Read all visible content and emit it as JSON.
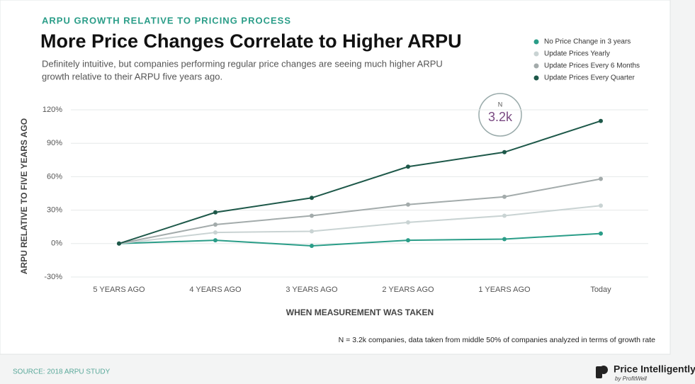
{
  "chart_data": {
    "type": "line",
    "kicker": "ARPU GROWTH RELATIVE TO PRICING PROCESS",
    "title": "More Price Changes Correlate to Higher ARPU",
    "subtitle": [
      "Definitely intuitive, but companies performing regular price changes are seeing much higher ARPU",
      "growth relative to their ARPU five years ago."
    ],
    "y_label": "ARPU RELATIVE TO FIVE YEARS AGO",
    "x_label": "WHEN MEASUREMENT WAS TAKEN",
    "categories": [
      "5 YEARS AGO",
      "4 YEARS AGO",
      "3 YEARS AGO",
      "2 YEARS AGO",
      "1 YEARS AGO",
      "Today"
    ],
    "series": [
      {
        "name": "No Price Change in 3 years",
        "color": "#2a9d88",
        "values": [
          0,
          3,
          -2,
          3,
          4,
          9
        ]
      },
      {
        "name": "Update Prices Yearly",
        "color": "#c9d3d3",
        "values": [
          0,
          10,
          11,
          19,
          25,
          34
        ]
      },
      {
        "name": "Update Prices Every 6 Months",
        "color": "#a3abab",
        "values": [
          0,
          17,
          25,
          35,
          42,
          58
        ]
      },
      {
        "name": "Update Prices Every Quarter",
        "color": "#1d5849",
        "values": [
          0,
          28,
          41,
          69,
          82,
          110
        ]
      }
    ],
    "ylim": [
      -30,
      120
    ],
    "yticks": [
      {
        "value": -30,
        "label": "-30%"
      },
      {
        "value": 0,
        "label": "0%"
      },
      {
        "value": 30,
        "label": "30%"
      },
      {
        "value": 60,
        "label": "60%"
      },
      {
        "value": 90,
        "label": "90%"
      },
      {
        "value": 120,
        "label": "120%"
      }
    ],
    "grid": true,
    "annotation": {
      "label": "N",
      "value": "3.2k"
    },
    "footnote": "N = 3.2k companies, data taken from middle 50% of companies analyzed in terms of growth rate",
    "source": "SOURCE: 2018 ARPU STUDY",
    "logo": {
      "name": "Price Intelligently",
      "byline": "by ProfitWell"
    }
  }
}
